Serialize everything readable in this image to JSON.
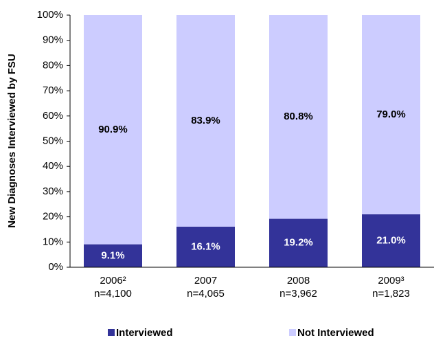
{
  "chart_data": {
    "type": "stacked_bar_100",
    "y_label": "New Diagnoses Interviewed by FSU",
    "categories": [
      "2006²",
      "2007",
      "2008",
      "2009³"
    ],
    "sample_sizes": [
      "n=4,100",
      "n=4,065",
      "n=3,962",
      "n=1,823"
    ],
    "series": [
      {
        "name": "Interviewed",
        "color": "#333399",
        "label_color": "#ffffff",
        "values": [
          9.1,
          16.1,
          19.2,
          21.0
        ],
        "value_labels": [
          "9.1%",
          "16.1%",
          "19.2%",
          "21.0%"
        ]
      },
      {
        "name": "Not Interviewed",
        "color": "#ccccff",
        "label_color": "#000000",
        "values": [
          90.9,
          83.9,
          80.8,
          79.0
        ],
        "value_labels": [
          "90.9%",
          "83.9%",
          "80.8%",
          "79.0%"
        ]
      }
    ],
    "ylim": [
      0,
      100
    ],
    "yticks": [
      {
        "value": 0,
        "label": "0%"
      },
      {
        "value": 10,
        "label": "10%"
      },
      {
        "value": 20,
        "label": "20%"
      },
      {
        "value": 30,
        "label": "30%"
      },
      {
        "value": 40,
        "label": "40%"
      },
      {
        "value": 50,
        "label": "50%"
      },
      {
        "value": 60,
        "label": "60%"
      },
      {
        "value": 70,
        "label": "70%"
      },
      {
        "value": 80,
        "label": "80%"
      },
      {
        "value": 90,
        "label": "90%"
      },
      {
        "value": 100,
        "label": "100%"
      }
    ],
    "legend": "bottom"
  }
}
